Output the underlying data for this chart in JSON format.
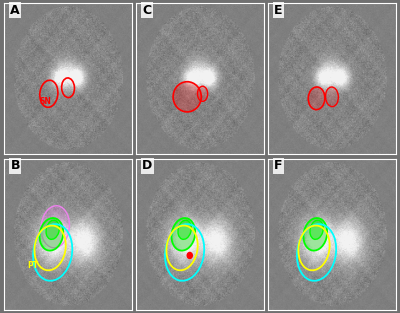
{
  "layout": {
    "rows": 2,
    "cols": 3,
    "figsize": [
      4.0,
      3.13
    ],
    "dpi": 100
  },
  "panels": [
    {
      "label": "A",
      "row": 0,
      "col": 0
    },
    {
      "label": "C",
      "row": 0,
      "col": 1
    },
    {
      "label": "E",
      "row": 0,
      "col": 2
    },
    {
      "label": "B",
      "row": 1,
      "col": 0
    },
    {
      "label": "D",
      "row": 1,
      "col": 1
    },
    {
      "label": "F",
      "row": 1,
      "col": 2
    }
  ],
  "background_color": "#707070",
  "border_color": "white",
  "label_fontsize": 9,
  "label_fontweight": "bold",
  "subplot_hspace": 0.03,
  "subplot_wspace": 0.03
}
